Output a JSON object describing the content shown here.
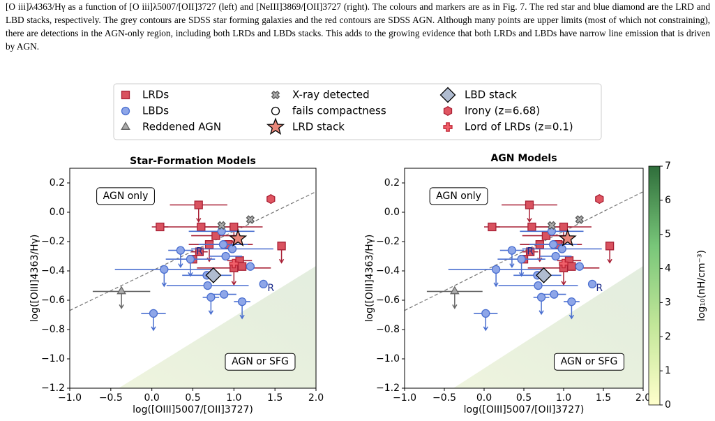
{
  "caption": "[O iii]λ4363/Hγ as a function of [O iii]λ5007/[OII]3727 (left) and [NeIII]3869/[OII]3727 (right). The colours and markers are as in Fig. 7. The red star and blue diamond are the LRD and LBD stacks, respectively. The grey contours are SDSS star forming galaxies and the red contours are SDSS AGN. Although many points are upper limits (most of which not constraining), there are detections in the AGN-only region, including both LRDs and LBDs stacks. This adds to the growing evidence that both LRDs and LBDs have narrow line emission that is driven by AGN.",
  "chart_data": [
    {
      "type": "scatter",
      "title": "Star-Formation Models",
      "xlabel": "log([OIII]5007/[OII]3727)",
      "ylabel": "log([OIII]4363/Hγ)",
      "xlim": [
        -1,
        2
      ],
      "ylim": [
        -1.2,
        0.3
      ],
      "xticks": [
        {
          "value": -1,
          "label": "−1.0"
        },
        {
          "value": -0.5,
          "label": "−0.5"
        },
        {
          "value": 0,
          "label": "0.0"
        },
        0.5,
        {
          "value": 1,
          "label": "1.0"
        },
        1.5,
        {
          "value": 2,
          "label": "2.0"
        }
      ],
      "yticks": [
        {
          "value": -1.2,
          "label": "−1.2"
        },
        {
          "value": -1,
          "label": "−1.0"
        },
        {
          "value": -0.8,
          "label": "−0.8"
        },
        {
          "value": -0.6,
          "label": "−0.6"
        },
        {
          "value": -0.4,
          "label": "−0.4"
        },
        {
          "value": -0.2,
          "label": "−0.2"
        },
        {
          "value": 0,
          "label": "0.0"
        },
        0.2
      ],
      "boundary": {
        "x": [
          -1,
          2
        ],
        "y": [
          -0.67,
          0.14
        ]
      },
      "annotations": [
        {
          "text": "AGN only",
          "x": -0.32,
          "y": 0.11
        },
        {
          "text": "AGN or SFG",
          "x": 1.32,
          "y": -1.02
        },
        {
          "text": "R",
          "x": 0.58,
          "y": -0.27
        },
        {
          "text": "R",
          "x": 1.45,
          "y": -0.52
        }
      ],
      "series": [
        {
          "name": "LRDs",
          "marker": "square",
          "color": "#d9525f",
          "edge": "#a82035",
          "x": [
            0.57,
            0.1,
            0.6,
            0.78,
            0.7,
            0.58,
            0.5,
            1.0,
            1.07,
            1.0,
            1.1,
            1.58,
            0.93
          ],
          "y": [
            0.05,
            -0.1,
            -0.1,
            -0.16,
            -0.22,
            -0.27,
            -0.32,
            -0.1,
            -0.33,
            -0.38,
            -0.37,
            -0.23,
            -0.22
          ],
          "xerr": [
            0.35,
            0.1,
            0.5,
            0.3,
            0.25,
            0.1,
            0.05,
            0.35,
            0.15,
            0.45,
            0.1,
            0.05,
            0.3
          ],
          "upper": [
            true,
            false,
            false,
            false,
            true,
            false,
            false,
            true,
            false,
            true,
            false,
            true,
            false
          ]
        },
        {
          "name": "LBDs",
          "marker": "circle",
          "color": "#8ea6e8",
          "edge": "#4a6fd0",
          "x": [
            0.35,
            0.47,
            0.15,
            0.85,
            0.87,
            0.9,
            0.98,
            1.2,
            0.67,
            0.72,
            0.88,
            1.1,
            0.02,
            0.68,
            1.36
          ],
          "y": [
            -0.26,
            -0.32,
            -0.39,
            -0.13,
            -0.22,
            -0.3,
            -0.25,
            -0.37,
            -0.43,
            -0.58,
            -0.56,
            -0.61,
            -0.69,
            -0.5,
            -0.49
          ],
          "xerr": [
            0.15,
            0.3,
            0.6,
            0.4,
            0.3,
            0.2,
            0.5,
            0.05,
            0.3,
            0.1,
            0.15,
            0.1,
            0.15,
            0.5,
            0
          ],
          "upper": [
            true,
            true,
            true,
            false,
            false,
            false,
            false,
            false,
            false,
            true,
            false,
            true,
            true,
            false,
            false
          ]
        },
        {
          "name": "Reddened AGN",
          "marker": "triangle",
          "color": "#aaaaaa",
          "edge": "#666666",
          "x": [
            -0.37
          ],
          "y": [
            -0.54
          ],
          "xerr": [
            0.35
          ],
          "upper": [
            true
          ]
        },
        {
          "name": "X-ray detected",
          "marker": "x",
          "color": "#aaaaaa",
          "edge": "#555555",
          "x": [
            0.85,
            1.2
          ],
          "y": [
            -0.09,
            -0.05
          ]
        },
        {
          "name": "fails compactness",
          "marker": "open",
          "color": "#ffffff",
          "edge": "#000000",
          "x": [],
          "y": []
        },
        {
          "name": "LRD stack",
          "marker": "star",
          "color": "#e8877a",
          "edge": "#000000",
          "x": [
            1.05
          ],
          "y": [
            -0.18
          ]
        },
        {
          "name": "LBD stack",
          "marker": "diamond",
          "color": "#b0bcd0",
          "edge": "#000000",
          "x": [
            0.75
          ],
          "y": [
            -0.43
          ]
        },
        {
          "name": "Irony (z=6.68)",
          "marker": "hexagon",
          "color": "#e05561",
          "edge": "#a82035",
          "x": [
            1.45
          ],
          "y": [
            0.09
          ]
        },
        {
          "name": "Lord of LRDs (z=0.1)",
          "marker": "plus",
          "color": "#f0606a",
          "edge": "#c02535",
          "x": [
            1.0
          ],
          "y": [
            -0.35
          ]
        }
      ]
    },
    {
      "type": "scatter",
      "title": "AGN Models",
      "xlabel": "log([OIII]5007/[OII]3727)",
      "ylabel": "log([OIII]4363/Hγ)",
      "xlim": [
        -1,
        2
      ],
      "ylim": [
        -1.2,
        0.3
      ],
      "xticks": [
        {
          "value": -1,
          "label": "−1.0"
        },
        {
          "value": -0.5,
          "label": "−0.5"
        },
        {
          "value": 0,
          "label": "0.0"
        },
        0.5,
        {
          "value": 1,
          "label": "1.0"
        },
        1.5,
        {
          "value": 2,
          "label": "2.0"
        }
      ],
      "yticks": [
        {
          "value": -1.2,
          "label": "−1.2"
        },
        {
          "value": -1,
          "label": "−1.0"
        },
        {
          "value": -0.8,
          "label": "−0.8"
        },
        {
          "value": -0.6,
          "label": "−0.6"
        },
        {
          "value": -0.4,
          "label": "−0.4"
        },
        {
          "value": -0.2,
          "label": "−0.2"
        },
        {
          "value": 0,
          "label": "0.0"
        },
        0.2
      ],
      "boundary": {
        "x": [
          -1,
          2
        ],
        "y": [
          -0.67,
          0.14
        ]
      },
      "annotations": [
        {
          "text": "AGN only",
          "x": -0.32,
          "y": 0.11
        },
        {
          "text": "AGN or SFG",
          "x": 1.32,
          "y": -1.02
        },
        {
          "text": "R",
          "x": 0.58,
          "y": -0.27
        },
        {
          "text": "R",
          "x": 1.45,
          "y": -0.52
        }
      ],
      "colorbar": {
        "label": "log₁₀(nH/cm⁻³)",
        "lim": [
          0,
          7
        ],
        "ticks": [
          0,
          1,
          2,
          3,
          4,
          5,
          6,
          7
        ],
        "colors": [
          "#ffffcc",
          "#c2e699",
          "#78c679",
          "#2f6e3b"
        ]
      },
      "series": [
        {
          "marker": "square",
          "color": "#d9525f",
          "edge": "#a82035",
          "x": [
            0.57,
            0.1,
            0.6,
            0.78,
            0.7,
            0.58,
            0.5,
            1.0,
            1.07,
            1.0,
            1.1,
            1.58,
            0.93
          ],
          "y": [
            0.05,
            -0.1,
            -0.1,
            -0.16,
            -0.22,
            -0.27,
            -0.32,
            -0.1,
            -0.33,
            -0.38,
            -0.37,
            -0.23,
            -0.22
          ],
          "xerr": [
            0.35,
            0.1,
            0.5,
            0.3,
            0.25,
            0.1,
            0.05,
            0.35,
            0.15,
            0.45,
            0.1,
            0.05,
            0.3
          ],
          "upper": [
            true,
            false,
            false,
            false,
            true,
            false,
            false,
            true,
            false,
            true,
            false,
            true,
            false
          ]
        },
        {
          "marker": "circle",
          "color": "#8ea6e8",
          "edge": "#4a6fd0",
          "x": [
            0.35,
            0.47,
            0.15,
            0.85,
            0.87,
            0.9,
            0.98,
            1.2,
            0.67,
            0.72,
            0.88,
            1.1,
            0.02,
            0.68,
            1.36
          ],
          "y": [
            -0.26,
            -0.32,
            -0.39,
            -0.13,
            -0.22,
            -0.3,
            -0.25,
            -0.37,
            -0.43,
            -0.58,
            -0.56,
            -0.61,
            -0.69,
            -0.5,
            -0.49
          ],
          "xerr": [
            0.15,
            0.3,
            0.6,
            0.4,
            0.3,
            0.2,
            0.5,
            0.05,
            0.3,
            0.1,
            0.15,
            0.1,
            0.15,
            0.5,
            0
          ],
          "upper": [
            true,
            true,
            true,
            false,
            false,
            false,
            false,
            false,
            false,
            true,
            false,
            true,
            true,
            false,
            false
          ]
        },
        {
          "marker": "triangle",
          "color": "#aaaaaa",
          "edge": "#666666",
          "x": [
            -0.37
          ],
          "y": [
            -0.54
          ],
          "xerr": [
            0.35
          ],
          "upper": [
            true
          ]
        },
        {
          "marker": "x",
          "color": "#aaaaaa",
          "edge": "#555555",
          "x": [
            0.85,
            1.2
          ],
          "y": [
            -0.09,
            -0.05
          ]
        },
        {
          "marker": "open",
          "color": "#ffffff",
          "edge": "#000000",
          "x": [],
          "y": []
        },
        {
          "marker": "star",
          "color": "#e8877a",
          "edge": "#000000",
          "x": [
            1.05
          ],
          "y": [
            -0.18
          ]
        },
        {
          "marker": "diamond",
          "color": "#b0bcd0",
          "edge": "#000000",
          "x": [
            0.75
          ],
          "y": [
            -0.43
          ]
        },
        {
          "marker": "hexagon",
          "color": "#e05561",
          "edge": "#a82035",
          "x": [
            1.45
          ],
          "y": [
            0.09
          ]
        },
        {
          "marker": "plus",
          "color": "#f0606a",
          "edge": "#c02535",
          "x": [
            1.0
          ],
          "y": [
            -0.35
          ]
        }
      ]
    }
  ]
}
